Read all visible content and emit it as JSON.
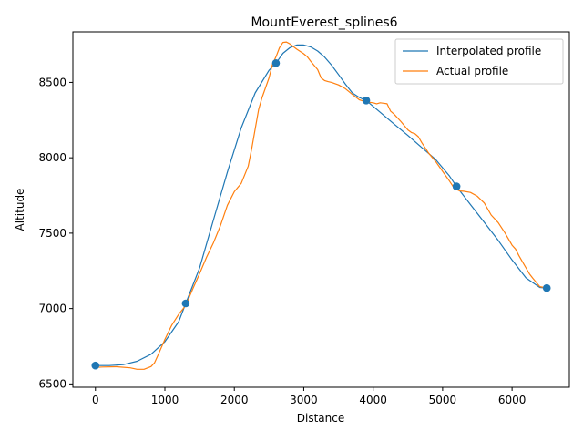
{
  "chart_data": {
    "type": "line",
    "title": "MountEverest_splines6",
    "xlabel": "Distance",
    "ylabel": "Altitude",
    "xlim": [
      -325,
      6825
    ],
    "ylim": [
      6478,
      8835
    ],
    "xticks": [
      0,
      1000,
      2000,
      3000,
      4000,
      5000,
      6000
    ],
    "yticks": [
      6500,
      7000,
      7500,
      8000,
      8500
    ],
    "grid": false,
    "legend": {
      "position": "top-right"
    },
    "series": [
      {
        "name": "Interpolated profile",
        "color": "#1f77b4",
        "x": [
          0,
          200,
          400,
          600,
          800,
          1000,
          1200,
          1300,
          1500,
          1700,
          1900,
          2100,
          2300,
          2500,
          2600,
          2700,
          2800,
          2900,
          3000,
          3100,
          3200,
          3300,
          3400,
          3500,
          3600,
          3700,
          3800,
          3900,
          4100,
          4300,
          4500,
          4700,
          4900,
          5100,
          5200,
          5400,
          5600,
          5800,
          6000,
          6200,
          6400,
          6500
        ],
        "y": [
          6622,
          6622,
          6628,
          6650,
          6697,
          6780,
          6913,
          7034,
          7269,
          7590,
          7905,
          8198,
          8430,
          8580,
          8628,
          8693,
          8730,
          8748,
          8748,
          8735,
          8708,
          8668,
          8615,
          8552,
          8488,
          8430,
          8400,
          8380,
          8302,
          8224,
          8148,
          8068,
          7988,
          7878,
          7810,
          7690,
          7572,
          7452,
          7322,
          7203,
          7140,
          7136
        ]
      },
      {
        "name": "Actual profile",
        "color": "#ff7f0e",
        "x": [
          0,
          100,
          300,
          500,
          600,
          700,
          800,
          850,
          900,
          1000,
          1100,
          1200,
          1300,
          1400,
          1500,
          1600,
          1700,
          1800,
          1900,
          2000,
          2100,
          2200,
          2250,
          2300,
          2350,
          2400,
          2500,
          2550,
          2600,
          2650,
          2700,
          2750,
          2800,
          2850,
          2900,
          3000,
          3050,
          3100,
          3200,
          3250,
          3300,
          3350,
          3400,
          3500,
          3600,
          3700,
          3800,
          3900,
          4000,
          4050,
          4100,
          4150,
          4200,
          4250,
          4300,
          4400,
          4500,
          4550,
          4600,
          4650,
          4700,
          4800,
          4900,
          5000,
          5100,
          5150,
          5200,
          5250,
          5300,
          5400,
          5500,
          5600,
          5700,
          5800,
          5900,
          6000,
          6050,
          6100,
          6150,
          6200,
          6250,
          6300,
          6400,
          6500
        ],
        "y": [
          6610,
          6612,
          6614,
          6607,
          6597,
          6597,
          6615,
          6640,
          6690,
          6795,
          6890,
          6962,
          7020,
          7128,
          7232,
          7340,
          7438,
          7550,
          7685,
          7775,
          7830,
          7945,
          8060,
          8190,
          8320,
          8400,
          8530,
          8620,
          8670,
          8730,
          8765,
          8768,
          8755,
          8738,
          8720,
          8690,
          8670,
          8640,
          8585,
          8530,
          8512,
          8505,
          8500,
          8483,
          8458,
          8420,
          8385,
          8370,
          8365,
          8358,
          8365,
          8362,
          8358,
          8310,
          8290,
          8240,
          8185,
          8168,
          8160,
          8140,
          8100,
          8030,
          7975,
          7910,
          7845,
          7810,
          7790,
          7780,
          7778,
          7770,
          7745,
          7700,
          7620,
          7570,
          7500,
          7420,
          7395,
          7350,
          7310,
          7270,
          7230,
          7200,
          7145,
          7137
        ]
      }
    ],
    "markers": {
      "color": "#1f77b4",
      "x": [
        0,
        1300,
        2600,
        3900,
        5200,
        6500
      ],
      "y": [
        6622,
        7034,
        8628,
        8380,
        7810,
        7136
      ]
    }
  }
}
